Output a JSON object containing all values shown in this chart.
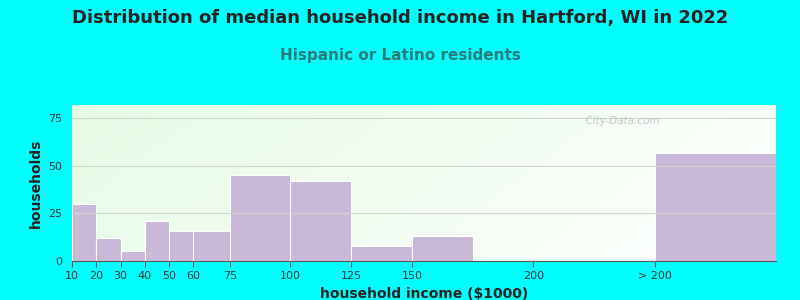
{
  "title": "Distribution of median household income in Hartford, WI in 2022",
  "subtitle": "Hispanic or Latino residents",
  "xlabel": "household income ($1000)",
  "ylabel": "households",
  "bar_values": [
    30,
    12,
    5,
    21,
    16,
    16,
    45,
    42,
    8,
    13,
    0,
    57
  ],
  "bar_widths": [
    10,
    10,
    10,
    10,
    10,
    15,
    25,
    25,
    25,
    25,
    50,
    50
  ],
  "bar_lefts": [
    10,
    20,
    30,
    40,
    50,
    60,
    75,
    100,
    125,
    150,
    200,
    250
  ],
  "bar_color": "#c9b8d8",
  "bar_edge_color": "#ffffff",
  "ylim": [
    0,
    82
  ],
  "yticks": [
    0,
    25,
    50,
    75
  ],
  "xlim_left": 10,
  "xlim_right": 300,
  "background_outer": "#00ffff",
  "background_plot": "#e8f5e8",
  "title_fontsize": 13,
  "title_color": "#222222",
  "subtitle_fontsize": 11,
  "subtitle_color": "#2a7a7a",
  "watermark": "  City-Data.com",
  "watermark_color": "#b0bec5",
  "grid_color": "#d0d8c8",
  "tick_labels": [
    "10",
    "20",
    "30",
    "40",
    "50",
    "60",
    "75",
    "100",
    "125",
    "150",
    "200",
    "> 200"
  ],
  "tick_positions": [
    10,
    20,
    30,
    40,
    50,
    60,
    75,
    100,
    125,
    150,
    200,
    250
  ],
  "xlabel_fontsize": 10,
  "ylabel_fontsize": 10
}
